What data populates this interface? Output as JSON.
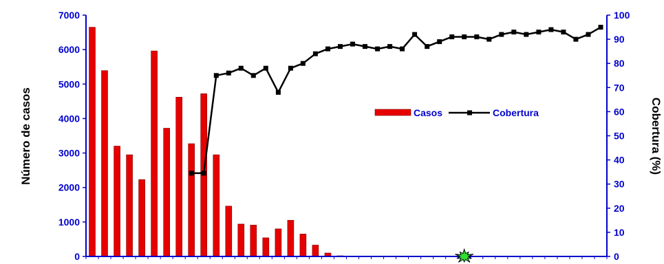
{
  "colors": {
    "bar": "#e60000",
    "bar_stroke": "#800000",
    "line": "#000000",
    "axis": "#0000cc",
    "tick_text": "#0000cc",
    "axis_title": "#000000",
    "marker_star": "#33dd33"
  },
  "chart_data": {
    "type": "bar",
    "title": "",
    "ylabel": "Número de casos",
    "y2label": "Cobertura (%)",
    "xlabel": "",
    "ylim": [
      0,
      7000
    ],
    "y2lim": [
      0,
      100
    ],
    "yticks": [
      "0",
      "1000",
      "2000",
      "3000",
      "4000",
      "5000",
      "6000",
      "7000"
    ],
    "y2ticks": [
      "0",
      "10",
      "20",
      "30",
      "40",
      "50",
      "60",
      "70",
      "80",
      "90",
      "100"
    ],
    "legend": {
      "position": "center-right",
      "casos_label": "Casos",
      "cobertura_label": "Cobertura"
    },
    "series": [
      {
        "name": "Casos",
        "type": "bar",
        "axis": "left",
        "values": [
          6650,
          5390,
          3200,
          2950,
          2230,
          5960,
          3720,
          4620,
          3270,
          4720,
          2950,
          1460,
          940,
          910,
          540,
          800,
          1050,
          650,
          330,
          100,
          20,
          0,
          0,
          0,
          0,
          0,
          0,
          0,
          0,
          0,
          0,
          0,
          0,
          0,
          0,
          0,
          0,
          0,
          0,
          0,
          0,
          0
        ]
      },
      {
        "name": "Cobertura",
        "type": "line",
        "axis": "right",
        "start_index": 8,
        "values": [
          34.5,
          34.5,
          75,
          76,
          78,
          75,
          78,
          68,
          78,
          80,
          84,
          86,
          87,
          88,
          87,
          86,
          87,
          86,
          92,
          87,
          89,
          91,
          91,
          91,
          90,
          92,
          93,
          92,
          93,
          94,
          93,
          90,
          92,
          95
        ]
      }
    ],
    "annotations": [
      {
        "type": "starburst",
        "index": 30,
        "value": 0
      }
    ]
  }
}
